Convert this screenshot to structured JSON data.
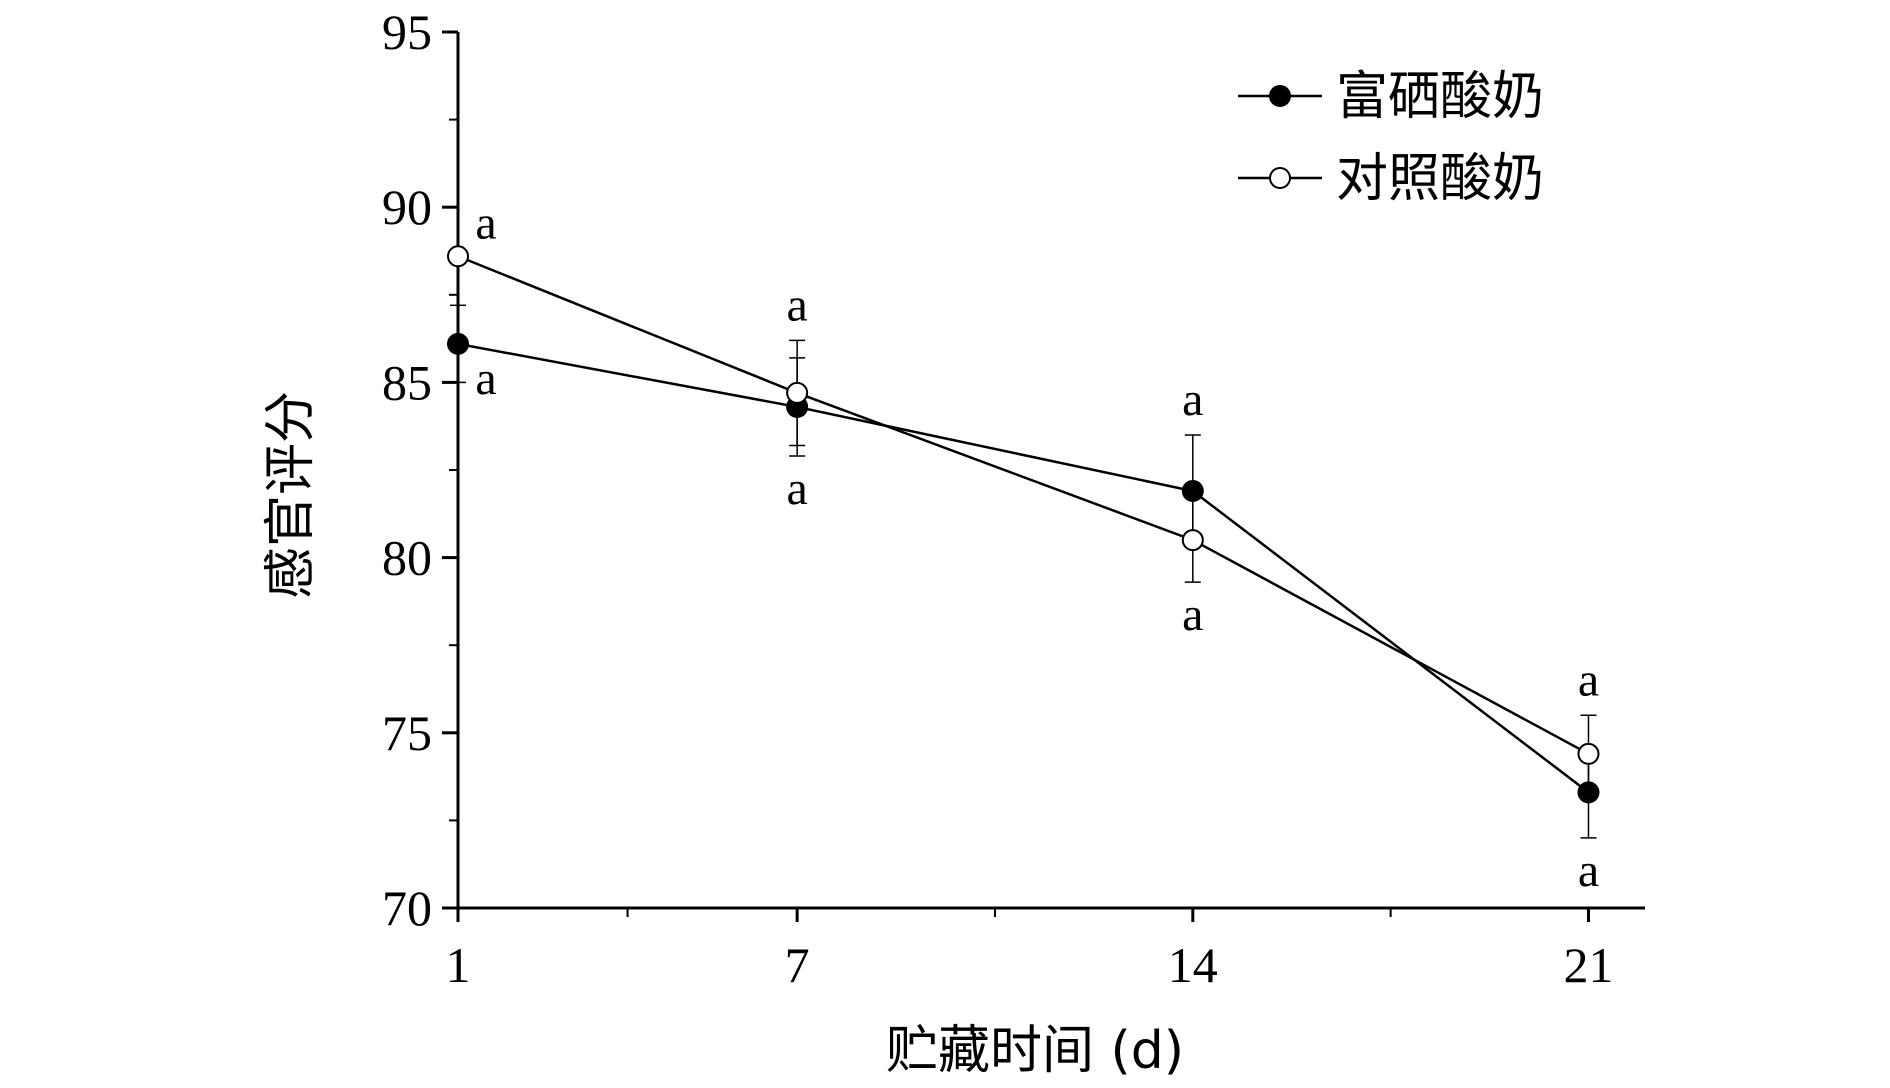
{
  "chart_data": {
    "type": "line",
    "title": "",
    "xlabel": "贮藏时间 (d)",
    "ylabel": "感官评分",
    "x": [
      1,
      7,
      14,
      21
    ],
    "x_ticks": [
      1,
      7,
      14,
      21
    ],
    "xlim": [
      1,
      22
    ],
    "ylim": [
      70,
      95
    ],
    "y_ticks": [
      70,
      75,
      80,
      85,
      90,
      95
    ],
    "grid": false,
    "legend": "top-right",
    "series": [
      {
        "name": "富硒酸奶",
        "marker": "filled-circle",
        "color": "#000000",
        "values": [
          86.1,
          84.3,
          81.9,
          73.3
        ],
        "error": [
          1.1,
          1.4,
          1.6,
          1.3
        ],
        "letters": [
          "a",
          "a",
          "a",
          "a"
        ]
      },
      {
        "name": "对照酸奶",
        "marker": "open-circle",
        "color": "#000000",
        "values": [
          88.6,
          84.7,
          80.5,
          74.4
        ],
        "error": [
          0.0,
          1.5,
          1.2,
          1.1
        ],
        "letters": [
          "a",
          "a",
          "a",
          "a"
        ]
      }
    ]
  }
}
